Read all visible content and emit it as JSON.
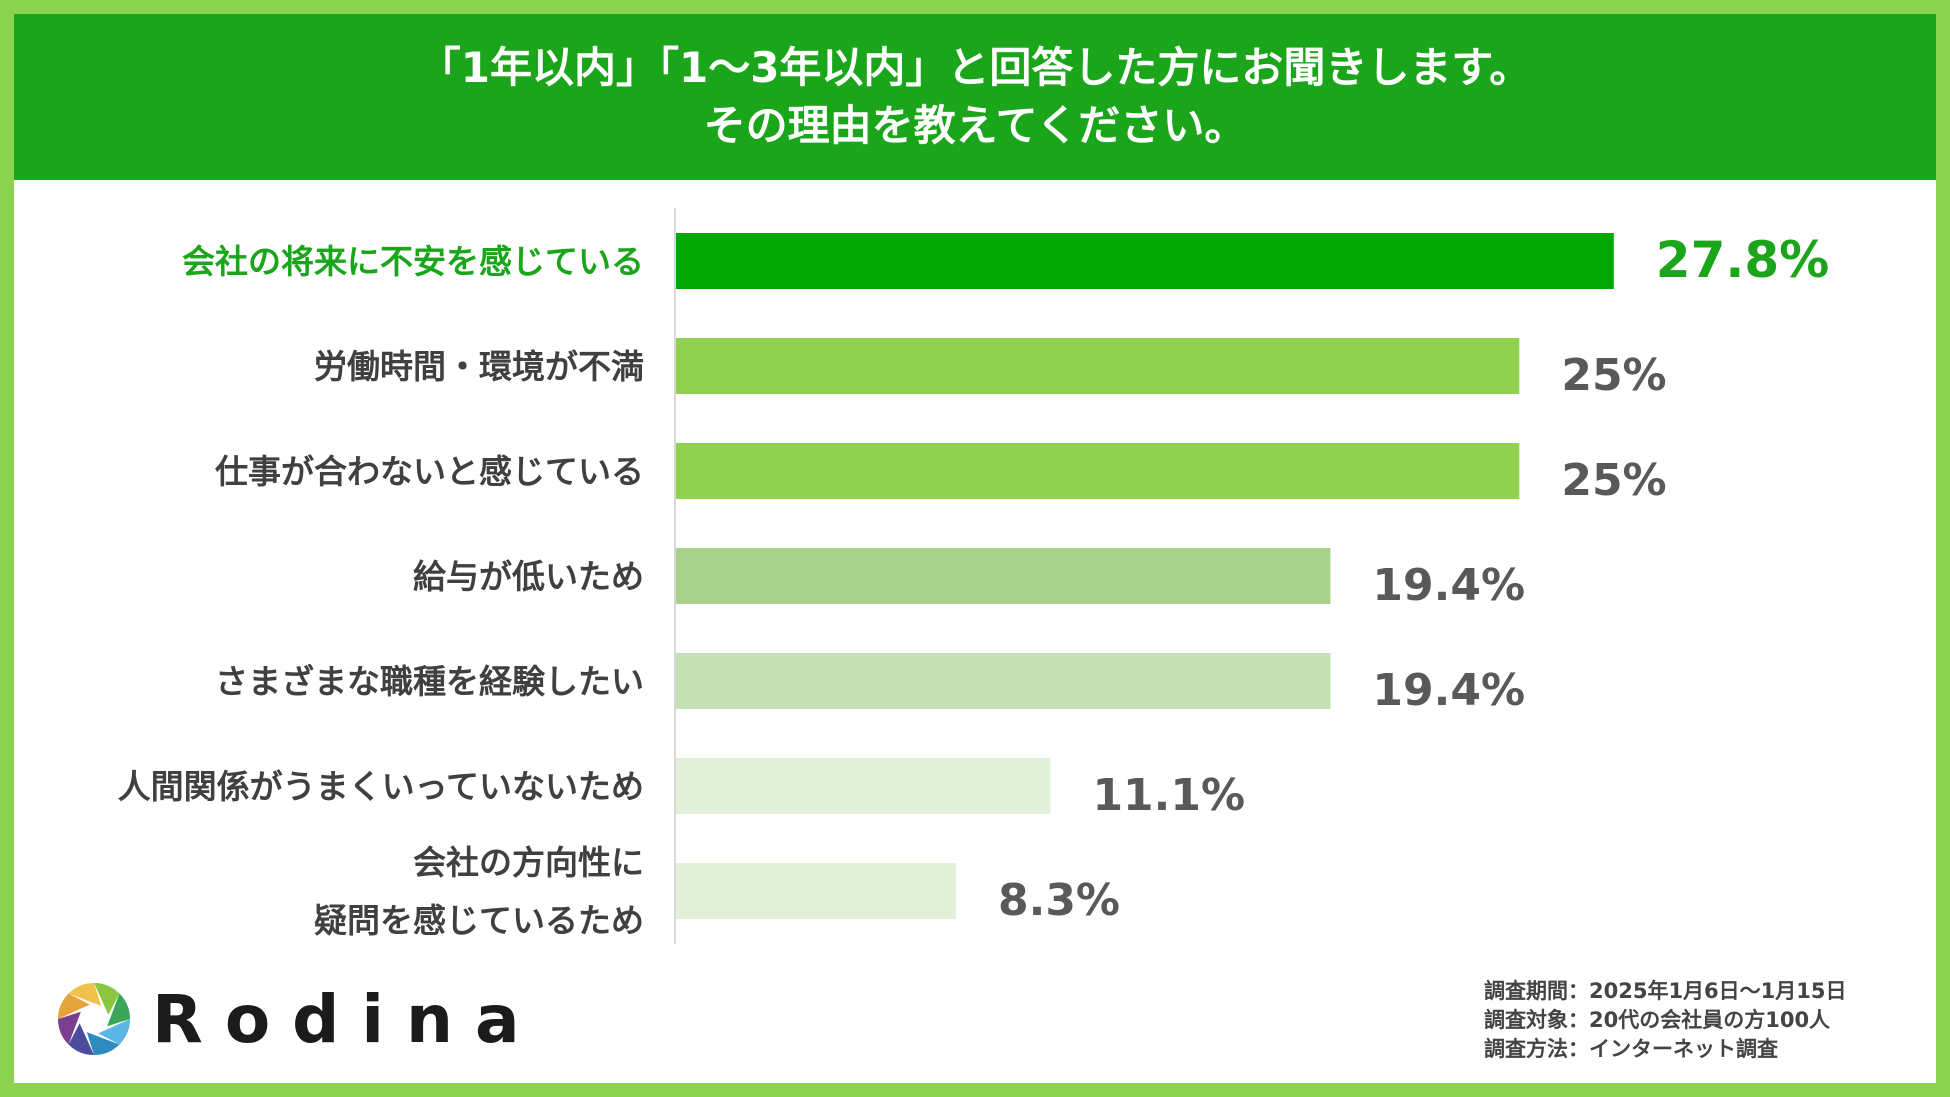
{
  "header": {
    "line1": "「1年以内」「1～3年以内」と回答した方にお聞きします。",
    "line2": "その理由を教えてください。"
  },
  "chart_data": {
    "type": "bar",
    "orientation": "horizontal",
    "title": "「1年以内」「1～3年以内」と回答した方にお聞きします。その理由を教えてください。",
    "xlim": [
      0,
      30
    ],
    "categories": [
      [
        "会社の将来に不安を感じている"
      ],
      [
        "労働時間・環境が不満"
      ],
      [
        "仕事が合わないと感じている"
      ],
      [
        "給与が低いため"
      ],
      [
        "さまざまな職種を経験したい"
      ],
      [
        "人間関係がうまくいっていないため"
      ],
      [
        "会社の方向性に",
        "疑問を感じているため"
      ]
    ],
    "values": [
      27.8,
      25,
      25,
      19.4,
      19.4,
      11.1,
      8.3
    ],
    "value_labels": [
      "27.8%",
      "25%",
      "25%",
      "19.4%",
      "19.4%",
      "11.1%",
      "8.3%"
    ],
    "bar_colors": [
      "#00a800",
      "#92d050",
      "#92d050",
      "#a9d18e",
      "#c5e0b4",
      "#e2f0d9",
      "#e2f0d9"
    ],
    "highlight_color": "#1aa51a",
    "label_color": "#404040"
  },
  "logo": {
    "name": "Rodina",
    "icon": "aperture-logo-icon"
  },
  "survey": [
    {
      "label": "調査期間",
      "sep": "：",
      "value": "2025年1月6日～1月15日"
    },
    {
      "label": "調査対象",
      "sep": "：",
      "value": "20代の会社員の方100人"
    },
    {
      "label": "調査方法",
      "sep": "：",
      "value": "インターネット調査"
    }
  ],
  "colors": {
    "frame": "#8bd34f",
    "header": "#1aa51a"
  }
}
